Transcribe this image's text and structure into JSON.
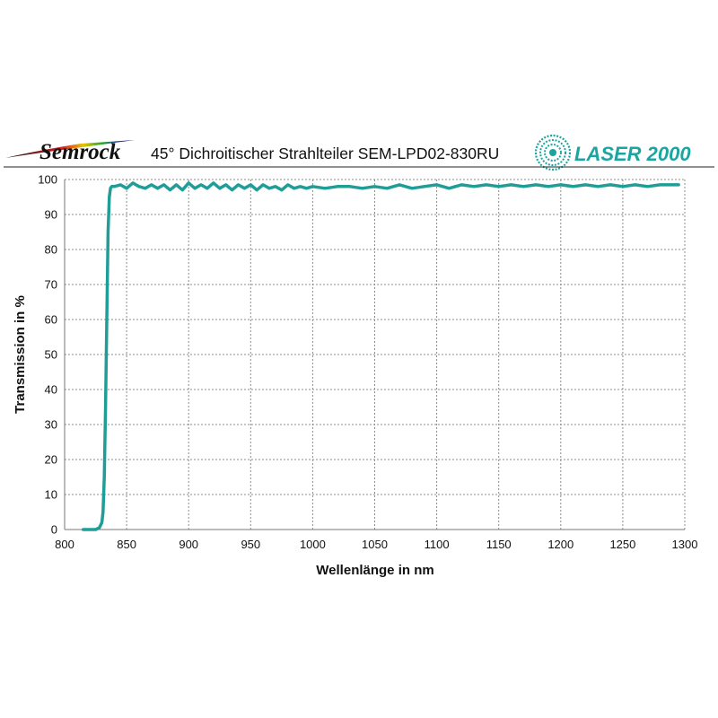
{
  "header": {
    "brand_left": "Semrock",
    "title": "45° Dichroitischer Strahlteiler SEM-LPD02-830RU",
    "brand_right": "LASER 2000"
  },
  "colors": {
    "series": "#1f9e98",
    "brand": "#1aa5a0"
  },
  "chart_data": {
    "type": "line",
    "title": "45° Dichroitischer Strahlteiler SEM-LPD02-830RU",
    "xlabel": "Wellenlänge in nm",
    "ylabel": "Transmission in %",
    "xlim": [
      800,
      1300
    ],
    "ylim": [
      0,
      100
    ],
    "xticks": [
      800,
      850,
      900,
      950,
      1000,
      1050,
      1100,
      1150,
      1200,
      1250,
      1300
    ],
    "yticks": [
      0,
      10,
      20,
      30,
      40,
      50,
      60,
      70,
      80,
      90,
      100
    ],
    "grid": true,
    "series": [
      {
        "x": [
          815,
          825,
          828,
          830,
          831,
          832,
          833,
          834,
          835,
          836,
          837,
          838,
          840,
          845,
          850,
          855,
          860,
          865,
          870,
          875,
          880,
          885,
          890,
          895,
          900,
          905,
          910,
          915,
          920,
          925,
          930,
          935,
          940,
          945,
          950,
          955,
          960,
          965,
          970,
          975,
          980,
          985,
          990,
          995,
          1000,
          1010,
          1020,
          1030,
          1040,
          1050,
          1060,
          1070,
          1080,
          1090,
          1100,
          1110,
          1120,
          1130,
          1140,
          1150,
          1160,
          1170,
          1180,
          1190,
          1200,
          1210,
          1220,
          1230,
          1240,
          1250,
          1260,
          1270,
          1280,
          1290,
          1295
        ],
        "y": [
          0,
          0,
          0.5,
          2,
          5,
          15,
          35,
          60,
          85,
          95,
          97.5,
          98,
          98,
          98.5,
          97.5,
          99,
          98,
          97.5,
          98.5,
          97.5,
          98.5,
          97,
          98.5,
          97,
          99,
          97.5,
          98.5,
          97.5,
          99,
          97.5,
          98.5,
          97,
          98.5,
          97.5,
          98.5,
          97,
          98.5,
          97.5,
          98,
          97,
          98.5,
          97.5,
          98,
          97.5,
          98,
          97.5,
          98,
          98,
          97.5,
          98,
          97.5,
          98.5,
          97.5,
          98,
          98.5,
          97.5,
          98.5,
          98,
          98.5,
          98,
          98.5,
          98,
          98.5,
          98,
          98.5,
          98,
          98.5,
          98,
          98.5,
          98,
          98.5,
          98,
          98.5,
          98.5,
          98.5
        ]
      }
    ]
  }
}
